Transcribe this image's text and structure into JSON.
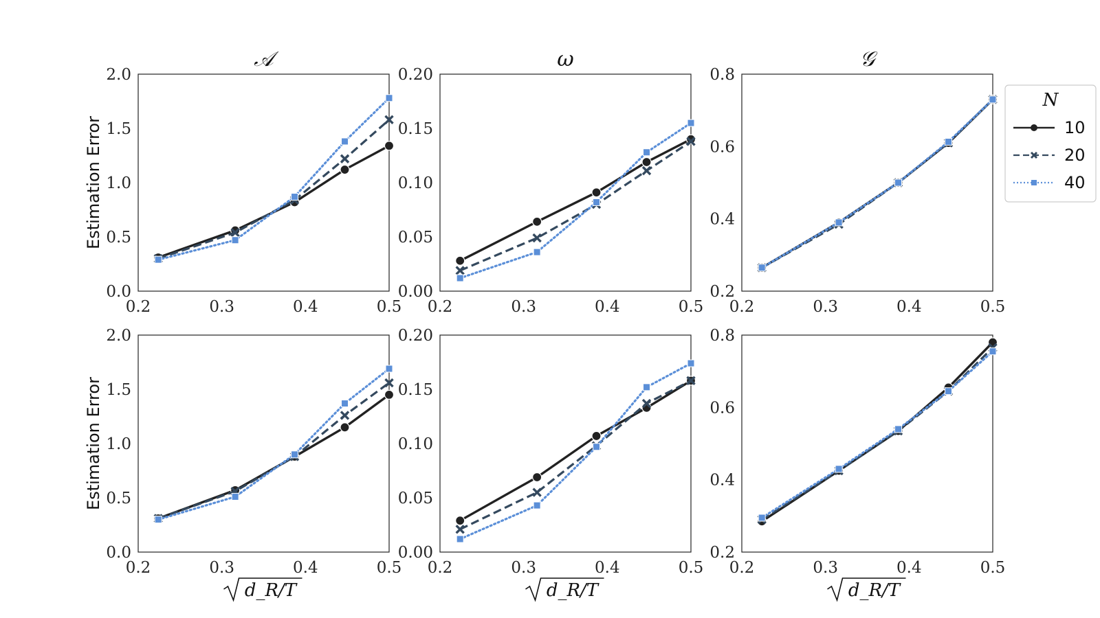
{
  "figure": {
    "ylabel": "Estimation Error",
    "xlabel": "√d_R/T",
    "legend": {
      "title": "N",
      "entries": [
        "10",
        "20",
        "40"
      ]
    }
  },
  "series_styles": [
    {
      "name": "10",
      "color": "#222222",
      "dash": "",
      "marker": "circle"
    },
    {
      "name": "20",
      "color": "#34495e",
      "dash": "12,6",
      "marker": "x"
    },
    {
      "name": "40",
      "color": "#5b8fd8",
      "dash": "2,4",
      "marker": "square"
    }
  ],
  "chart_data": [
    {
      "type": "line",
      "title": "𝒜",
      "ylabel": "Estimation Error",
      "xlabel": "",
      "xlim": [
        0.2,
        0.5
      ],
      "ylim": [
        0.0,
        2.0
      ],
      "xticks": [
        "0.2",
        "0.3",
        "0.4",
        "0.5"
      ],
      "yticks": [
        "0.0",
        "0.5",
        "1.0",
        "1.5",
        "2.0"
      ],
      "x": [
        0.224,
        0.316,
        0.387,
        0.447,
        0.5
      ],
      "series": [
        {
          "name": "10",
          "values": [
            0.31,
            0.56,
            0.82,
            1.12,
            1.34
          ]
        },
        {
          "name": "20",
          "values": [
            0.3,
            0.54,
            0.84,
            1.22,
            1.58
          ]
        },
        {
          "name": "40",
          "values": [
            0.29,
            0.47,
            0.87,
            1.38,
            1.78
          ]
        }
      ]
    },
    {
      "type": "line",
      "title": "ω",
      "ylabel": "",
      "xlabel": "",
      "xlim": [
        0.2,
        0.5
      ],
      "ylim": [
        0.0,
        0.2
      ],
      "xticks": [
        "0.2",
        "0.3",
        "0.4",
        "0.5"
      ],
      "yticks": [
        "0.00",
        "0.05",
        "0.10",
        "0.15",
        "0.20"
      ],
      "x": [
        0.224,
        0.316,
        0.387,
        0.447,
        0.5
      ],
      "series": [
        {
          "name": "10",
          "values": [
            0.028,
            0.064,
            0.091,
            0.119,
            0.14
          ]
        },
        {
          "name": "20",
          "values": [
            0.019,
            0.049,
            0.08,
            0.111,
            0.138
          ]
        },
        {
          "name": "40",
          "values": [
            0.012,
            0.036,
            0.082,
            0.128,
            0.155
          ]
        }
      ]
    },
    {
      "type": "line",
      "title": "𝒢",
      "ylabel": "",
      "xlabel": "",
      "xlim": [
        0.2,
        0.5
      ],
      "ylim": [
        0.2,
        0.8
      ],
      "xticks": [
        "0.2",
        "0.3",
        "0.4",
        "0.5"
      ],
      "yticks": [
        "0.2",
        "0.4",
        "0.6",
        "0.8"
      ],
      "x": [
        0.224,
        0.316,
        0.387,
        0.447,
        0.5
      ],
      "series": [
        {
          "name": "10",
          "values": [
            0.265,
            0.39,
            0.5,
            0.61,
            0.73
          ]
        },
        {
          "name": "20",
          "values": [
            0.265,
            0.385,
            0.5,
            0.61,
            0.73
          ]
        },
        {
          "name": "40",
          "values": [
            0.265,
            0.39,
            0.5,
            0.613,
            0.73
          ]
        }
      ]
    },
    {
      "type": "line",
      "title": "",
      "ylabel": "Estimation Error",
      "xlabel": "√d_R/T",
      "xlim": [
        0.2,
        0.5
      ],
      "ylim": [
        0.0,
        2.0
      ],
      "xticks": [
        "0.2",
        "0.3",
        "0.4",
        "0.5"
      ],
      "yticks": [
        "0.0",
        "0.5",
        "1.0",
        "1.5",
        "2.0"
      ],
      "x": [
        0.224,
        0.316,
        0.387,
        0.447,
        0.5
      ],
      "series": [
        {
          "name": "10",
          "values": [
            0.31,
            0.57,
            0.88,
            1.15,
            1.45
          ]
        },
        {
          "name": "20",
          "values": [
            0.31,
            0.56,
            0.88,
            1.26,
            1.56
          ]
        },
        {
          "name": "40",
          "values": [
            0.3,
            0.51,
            0.9,
            1.37,
            1.69
          ]
        }
      ]
    },
    {
      "type": "line",
      "title": "",
      "ylabel": "",
      "xlabel": "√d_R/T",
      "xlim": [
        0.2,
        0.5
      ],
      "ylim": [
        0.0,
        0.2
      ],
      "xticks": [
        "0.2",
        "0.3",
        "0.4",
        "0.5"
      ],
      "yticks": [
        "0.00",
        "0.05",
        "0.10",
        "0.15",
        "0.20"
      ],
      "x": [
        0.224,
        0.316,
        0.387,
        0.447,
        0.5
      ],
      "series": [
        {
          "name": "10",
          "values": [
            0.029,
            0.069,
            0.107,
            0.133,
            0.158
          ]
        },
        {
          "name": "20",
          "values": [
            0.021,
            0.055,
            0.098,
            0.137,
            0.158
          ]
        },
        {
          "name": "40",
          "values": [
            0.012,
            0.043,
            0.097,
            0.152,
            0.174
          ]
        }
      ]
    },
    {
      "type": "line",
      "title": "",
      "ylabel": "",
      "xlabel": "√d_R/T",
      "xlim": [
        0.2,
        0.5
      ],
      "ylim": [
        0.2,
        0.8
      ],
      "xticks": [
        "0.2",
        "0.3",
        "0.4",
        "0.5"
      ],
      "yticks": [
        "0.2",
        "0.4",
        "0.6",
        "0.8"
      ],
      "x": [
        0.224,
        0.316,
        0.387,
        0.447,
        0.5
      ],
      "series": [
        {
          "name": "10",
          "values": [
            0.285,
            0.425,
            0.535,
            0.655,
            0.78
          ]
        },
        {
          "name": "20",
          "values": [
            0.29,
            0.425,
            0.535,
            0.645,
            0.765
          ]
        },
        {
          "name": "40",
          "values": [
            0.295,
            0.43,
            0.54,
            0.645,
            0.755
          ]
        }
      ]
    }
  ]
}
